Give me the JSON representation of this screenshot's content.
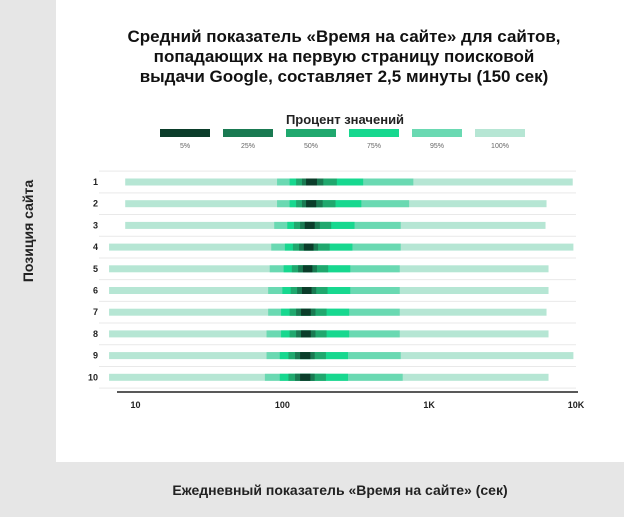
{
  "title_lines": [
    "Средний показатель «Время на сайте» для сайтов,",
    "попадающих на первую страницу поисковой",
    "выдачи Google, составляет 2,5 минуты (150 сек)"
  ],
  "colors": {
    "sidebar": "#e6e6e6",
    "grid": "#e9e9e9",
    "axis": "#222222",
    "pct5": "#0b3d2a",
    "pct25": "#1a7a52",
    "pct50": "#20a86e",
    "pct75": "#17d88f",
    "pct95": "#6ad9b2",
    "pct100": "#b6e6d4"
  },
  "chart_data": {
    "type": "box",
    "title": "Средний показатель «Время на сайте» для сайтов, попадающих на первую страницу поисковой выдачи Google, составляет 2,5 минуты (150 сек)",
    "ylabel": "Позиция сайта",
    "xlabel": "Ежедневный показатель «Время на сайте» (сек)",
    "x_scale": "log",
    "xlim": [
      6,
      10000
    ],
    "x_ticks": [
      {
        "value": 10,
        "label": "10"
      },
      {
        "value": 100,
        "label": "100"
      },
      {
        "value": 1000,
        "label": "1K"
      },
      {
        "value": 10000,
        "label": "10K"
      }
    ],
    "legend_title": "Процент значений",
    "legend": [
      {
        "label": "5%",
        "color_key": "pct5"
      },
      {
        "label": "25%",
        "color_key": "pct25"
      },
      {
        "label": "50%",
        "color_key": "pct50"
      },
      {
        "label": "75%",
        "color_key": "pct75"
      },
      {
        "label": "95%",
        "color_key": "pct95"
      },
      {
        "label": "100%",
        "color_key": "pct100"
      }
    ],
    "band_order": [
      "pct100",
      "pct95",
      "pct75",
      "pct50",
      "pct25",
      "pct5"
    ],
    "series": [
      {
        "position": "1",
        "pct100": [
          8.5,
          9500
        ],
        "pct95": [
          92,
          780
        ],
        "pct75": [
          112,
          355
        ],
        "pct50": [
          124,
          235
        ],
        "pct25": [
          136,
          190
        ],
        "pct5": [
          145,
          172
        ]
      },
      {
        "position": "2",
        "pct100": [
          8.5,
          6300
        ],
        "pct95": [
          92,
          730
        ],
        "pct75": [
          112,
          345
        ],
        "pct50": [
          124,
          230
        ],
        "pct25": [
          136,
          188
        ],
        "pct5": [
          145,
          170
        ]
      },
      {
        "position": "3",
        "pct100": [
          8.5,
          6200
        ],
        "pct95": [
          88,
          640
        ],
        "pct75": [
          108,
          310
        ],
        "pct50": [
          120,
          215
        ],
        "pct25": [
          132,
          180
        ],
        "pct5": [
          142,
          166
        ]
      },
      {
        "position": "4",
        "pct100": [
          6.6,
          9600
        ],
        "pct95": [
          84,
          640
        ],
        "pct75": [
          104,
          300
        ],
        "pct50": [
          118,
          210
        ],
        "pct25": [
          130,
          175
        ],
        "pct5": [
          140,
          163
        ]
      },
      {
        "position": "5",
        "pct100": [
          6.6,
          6500
        ],
        "pct95": [
          82,
          630
        ],
        "pct75": [
          102,
          290
        ],
        "pct50": [
          116,
          205
        ],
        "pct25": [
          128,
          172
        ],
        "pct5": [
          138,
          160
        ]
      },
      {
        "position": "6",
        "pct100": [
          6.6,
          6500
        ],
        "pct95": [
          80,
          630
        ],
        "pct75": [
          100,
          290
        ],
        "pct50": [
          114,
          203
        ],
        "pct25": [
          126,
          170
        ],
        "pct5": [
          136,
          158
        ]
      },
      {
        "position": "7",
        "pct100": [
          6.6,
          6300
        ],
        "pct95": [
          80,
          630
        ],
        "pct75": [
          98,
          285
        ],
        "pct50": [
          112,
          200
        ],
        "pct25": [
          124,
          168
        ],
        "pct5": [
          134,
          156
        ]
      },
      {
        "position": "8",
        "pct100": [
          6.6,
          6500
        ],
        "pct95": [
          78,
          630
        ],
        "pct75": [
          98,
          285
        ],
        "pct50": [
          112,
          200
        ],
        "pct25": [
          124,
          168
        ],
        "pct5": [
          134,
          156
        ]
      },
      {
        "position": "9",
        "pct100": [
          6.6,
          9600
        ],
        "pct95": [
          78,
          640
        ],
        "pct75": [
          96,
          280
        ],
        "pct50": [
          110,
          198
        ],
        "pct25": [
          122,
          166
        ],
        "pct5": [
          132,
          155
        ]
      },
      {
        "position": "10",
        "pct100": [
          6.6,
          6500
        ],
        "pct95": [
          76,
          660
        ],
        "pct75": [
          96,
          280
        ],
        "pct50": [
          110,
          198
        ],
        "pct25": [
          122,
          166
        ],
        "pct5": [
          132,
          155
        ]
      }
    ]
  }
}
